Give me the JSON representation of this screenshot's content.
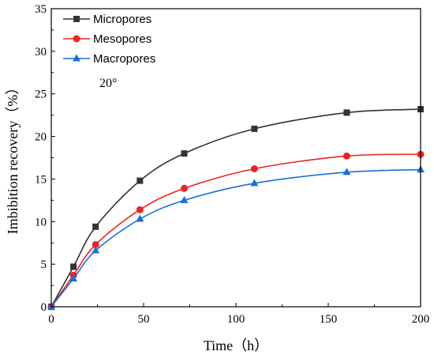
{
  "chart_data": {
    "type": "line",
    "xlabel": "Time（h）",
    "ylabel": "Imbibition recovery（%）",
    "xlim": [
      0,
      200
    ],
    "ylim": [
      0,
      35
    ],
    "xticks": [
      0,
      50,
      100,
      150,
      200
    ],
    "yticks": [
      0,
      5,
      10,
      15,
      20,
      25,
      30,
      35
    ],
    "annotation": "20°",
    "legend_position": "top-left",
    "grid": false,
    "series": [
      {
        "name": "Micropores",
        "marker": "square",
        "color": "#333333",
        "x": [
          0,
          12,
          24,
          48,
          72,
          110,
          160,
          200
        ],
        "y": [
          0,
          4.7,
          9.4,
          14.8,
          18.0,
          20.9,
          22.8,
          23.2
        ]
      },
      {
        "name": "Mesopores",
        "marker": "circle",
        "color": "#ee2222",
        "x": [
          0,
          12,
          24,
          48,
          72,
          110,
          160,
          200
        ],
        "y": [
          0,
          3.7,
          7.3,
          11.4,
          13.9,
          16.2,
          17.7,
          17.9
        ]
      },
      {
        "name": "Macropores",
        "marker": "triangle",
        "color": "#1a6fd6",
        "x": [
          0,
          12,
          24,
          48,
          72,
          110,
          160,
          200
        ],
        "y": [
          0,
          3.3,
          6.6,
          10.3,
          12.5,
          14.5,
          15.8,
          16.1
        ]
      }
    ]
  }
}
